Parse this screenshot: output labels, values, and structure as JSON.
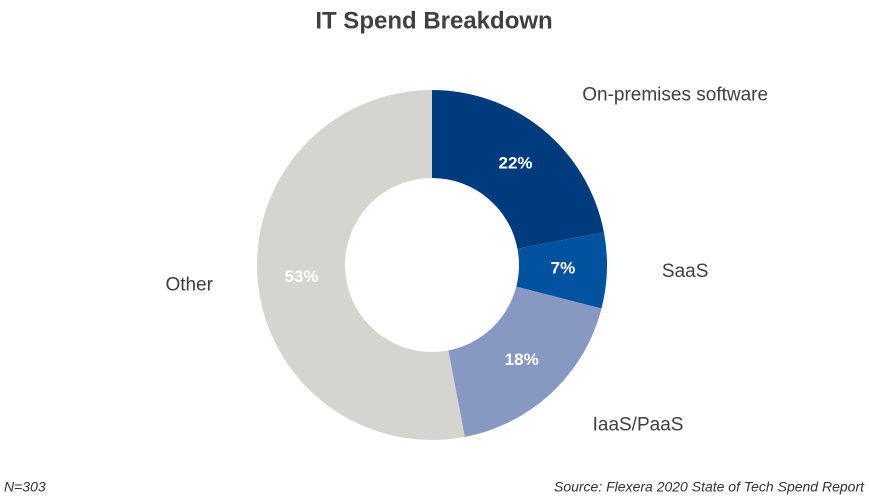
{
  "chart_data": {
    "type": "donut",
    "title": "IT Spend Breakdown",
    "categories": [
      "On-premises software",
      "SaaS",
      "IaaS/PaaS",
      "Other"
    ],
    "values": [
      22,
      7,
      18,
      53
    ],
    "value_labels": [
      "22%",
      "7%",
      "18%",
      "53%"
    ],
    "colors": [
      "#003c7d",
      "#0252a0",
      "#8798c2",
      "#d6d4ce"
    ],
    "footnote": "N=303",
    "source": "Source: Flexera 2020 State of Tech Spend Report"
  }
}
